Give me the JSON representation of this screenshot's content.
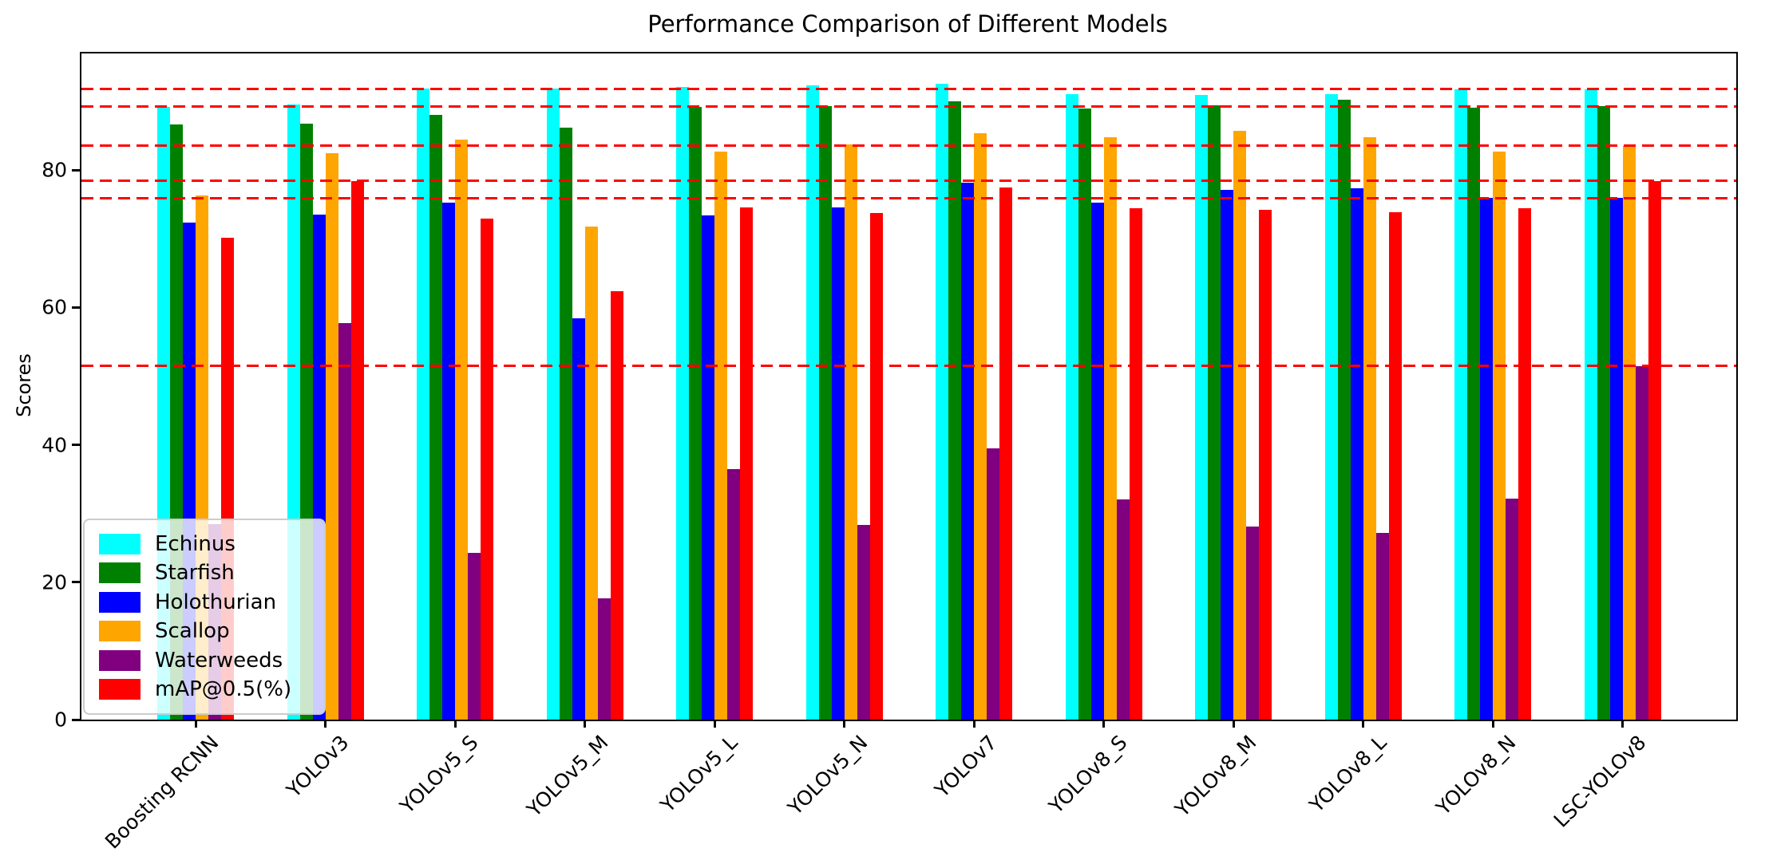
{
  "chart_data": {
    "type": "bar",
    "title": "Performance Comparison of Different Models",
    "xlabel": "",
    "ylabel": "Scores",
    "categories": [
      "Boosting RCNN",
      "YOLOv3",
      "YOLOv5_S",
      "YOLOv5_M",
      "YOLOv5_L",
      "YOLOv5_N",
      "YOLOv7",
      "YOLOv8_S",
      "YOLOv8_M",
      "YOLOv8_L",
      "YOLOv8_N",
      "LSC-YOLOv8"
    ],
    "series": [
      {
        "name": "Echinus",
        "color": "#00ffff",
        "values": [
          89.2,
          89.5,
          91.9,
          91.9,
          92.1,
          92.3,
          92.6,
          91.1,
          90.9,
          91.0,
          91.8,
          91.8
        ]
      },
      {
        "name": "Starfish",
        "color": "#008000",
        "values": [
          86.6,
          86.7,
          88.0,
          86.2,
          89.2,
          89.3,
          90.0,
          88.9,
          89.4,
          90.2,
          89.1,
          89.3
        ]
      },
      {
        "name": "Holothurian",
        "color": "#0000ff",
        "values": [
          72.3,
          73.5,
          75.2,
          58.4,
          73.4,
          74.5,
          78.2,
          75.2,
          77.1,
          77.4,
          76.0,
          75.9
        ]
      },
      {
        "name": "Scallop",
        "color": "#ffa500",
        "values": [
          76.3,
          82.5,
          84.4,
          71.8,
          82.7,
          83.7,
          85.4,
          84.8,
          85.7,
          84.8,
          82.7,
          83.5
        ]
      },
      {
        "name": "Waterweeds",
        "color": "#800080",
        "values": [
          28.5,
          57.7,
          24.3,
          17.6,
          36.5,
          28.3,
          39.5,
          32.0,
          28.1,
          27.2,
          32.2,
          51.5
        ]
      },
      {
        "name": "mAP@0.5(%)",
        "color": "#ff0000",
        "values": [
          70.2,
          78.4,
          72.9,
          62.4,
          74.6,
          73.8,
          77.5,
          74.4,
          74.2,
          73.9,
          74.4,
          78.4
        ]
      }
    ],
    "reference_lines": {
      "style": "dashed",
      "color": "#ff0000",
      "values": [
        91.8,
        89.3,
        83.5,
        78.4,
        75.9,
        51.5
      ]
    },
    "yticks": [
      0,
      20,
      40,
      60,
      80
    ],
    "ylim": [
      0,
      97.2
    ],
    "grid": false,
    "legend_position": "lower left"
  }
}
